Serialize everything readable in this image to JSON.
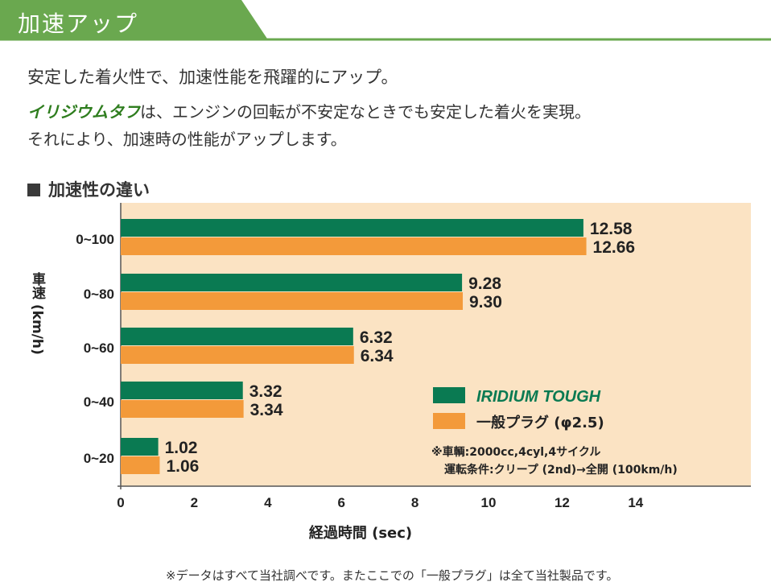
{
  "header": {
    "title": "加速アップ"
  },
  "intro": {
    "lead": "安定した着火性で、加速性能を飛躍的にアップ。",
    "brand_name": "イリジウムタフ",
    "line1_rest": "は、エンジンの回転が不安定なときでも安定した着火を実現。",
    "line2": "それにより、加速時の性能がアップします。"
  },
  "section": {
    "title": "加速性の違い"
  },
  "colors": {
    "banner_green": "#6aa84f",
    "iridium_green": "#0a7a52",
    "plug_orange": "#f39a3a",
    "plot_bg": "#fbe3c3",
    "brand_text": "#2e7d1e"
  },
  "chart_data": {
    "type": "bar",
    "orientation": "horizontal",
    "categories": [
      "0~100",
      "0~80",
      "0~60",
      "0~40",
      "0~20"
    ],
    "series": [
      {
        "name": "IRIDIUM TOUGH",
        "values": [
          12.58,
          9.28,
          6.32,
          3.32,
          1.02
        ],
        "labels": [
          "12.58",
          "9.28",
          "6.32",
          "3.32",
          "1.02"
        ]
      },
      {
        "name": "一般プラグ (φ2.5)",
        "values": [
          12.66,
          9.3,
          6.34,
          3.34,
          1.06
        ],
        "labels": [
          "12.66",
          "9.30",
          "6.34",
          "3.34",
          "1.06"
        ]
      }
    ],
    "xlabel": "経過時間 (sec)",
    "ylabel": "車速 (km/h)",
    "xticks": [
      "0",
      "2",
      "4",
      "6",
      "8",
      "10",
      "12",
      "14"
    ],
    "xlim": [
      0,
      17
    ],
    "legend_position": "bottom-right",
    "notes": [
      "※車輌:2000cc,4cyl,4サイクル",
      "運転条件:クリープ (2nd)→全開 (100km/h)"
    ]
  },
  "footnote": "※データはすべて当社調べです。またここでの「一般プラグ」は全て当社製品です。"
}
